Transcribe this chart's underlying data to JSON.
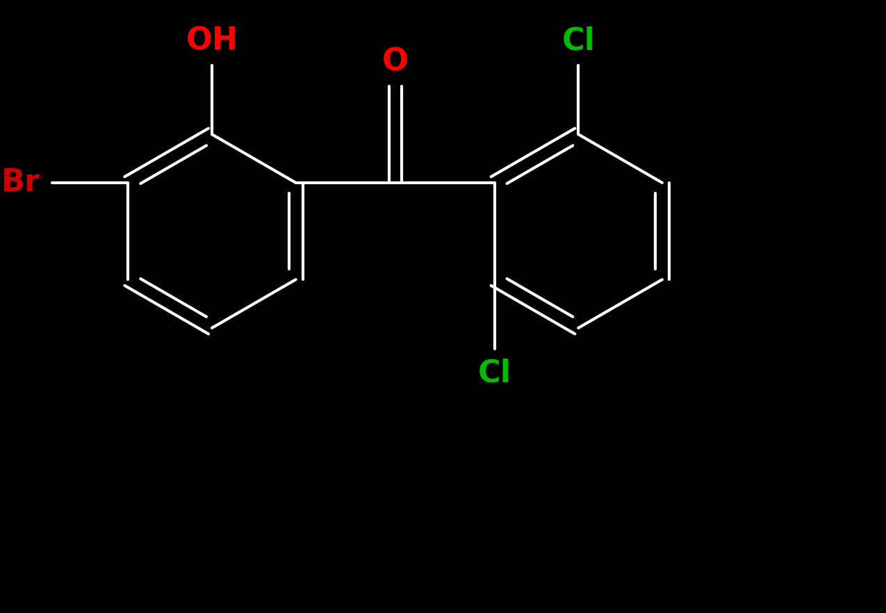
{
  "background_color": "#000000",
  "bond_color": "#ffffff",
  "bond_width": 3.0,
  "label_OH": {
    "text": "OH",
    "color": "#ff0000"
  },
  "label_O": {
    "text": "O",
    "color": "#ff0000"
  },
  "label_Br": {
    "text": "Br",
    "color": "#cc0000"
  },
  "label_Cl1": {
    "text": "Cl",
    "color": "#00bb00"
  },
  "label_Cl2": {
    "text": "Cl",
    "color": "#00bb00"
  },
  "font_size_labels": 32,
  "figsize": [
    12.75,
    8.82
  ],
  "dpi": 100
}
